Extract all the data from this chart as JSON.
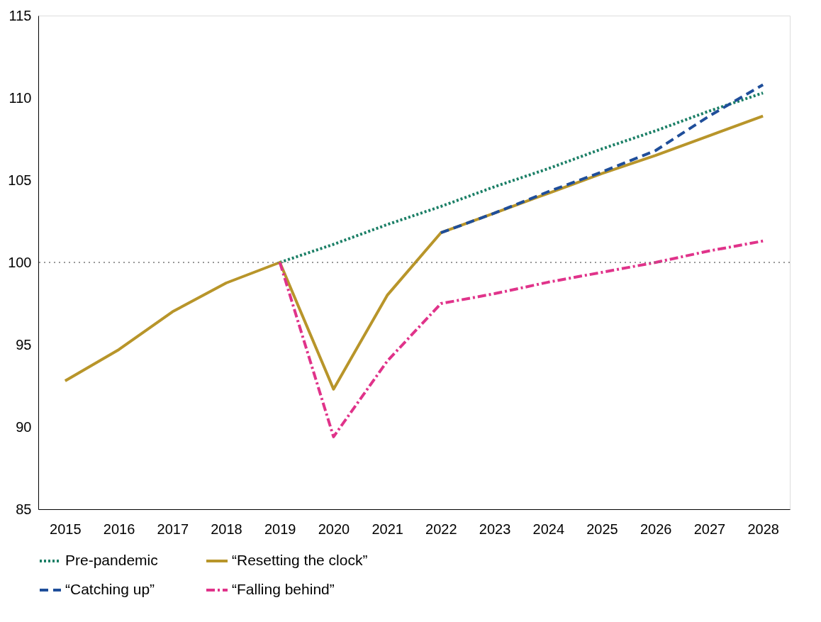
{
  "chart_data": {
    "type": "line",
    "categories": [
      "2015",
      "2016",
      "2017",
      "2018",
      "2019",
      "2020",
      "2021",
      "2022",
      "2023",
      "2024",
      "2025",
      "2026",
      "2027",
      "2028"
    ],
    "series": [
      {
        "name": "Pre-pandemic",
        "color": "#1b7f66",
        "line_style": "dotted",
        "values": [
          null,
          null,
          null,
          null,
          100,
          101.1,
          102.3,
          103.4,
          104.6,
          105.7,
          106.9,
          108.0,
          109.2,
          110.3
        ]
      },
      {
        "name": "“Resetting the clock”",
        "color": "#b8952a",
        "line_style": "solid",
        "values": [
          92.8,
          94.7,
          97.0,
          98.75,
          100,
          92.3,
          98.0,
          101.8,
          103.0,
          104.2,
          105.4,
          106.5,
          107.7,
          108.9
        ]
      },
      {
        "name": "“Catching up”",
        "color": "#1f4e9a",
        "line_style": "dashed",
        "values": [
          null,
          null,
          null,
          null,
          null,
          null,
          null,
          101.8,
          103.0,
          104.3,
          105.5,
          106.8,
          108.9,
          110.8
        ]
      },
      {
        "name": "“Falling behind”",
        "color": "#e0338a",
        "line_style": "dashdot",
        "values": [
          null,
          null,
          null,
          null,
          100,
          89.4,
          94.0,
          97.5,
          98.1,
          98.8,
          99.4,
          100.0,
          100.7,
          101.3
        ]
      }
    ],
    "ylim": [
      85,
      115
    ],
    "yticks": [
      85,
      90,
      95,
      100,
      105,
      110,
      115
    ],
    "ref_lines": [
      {
        "axis": "y",
        "value": 100,
        "color": "#777777",
        "line_style": "dotted"
      }
    ],
    "grid": false,
    "legend": "bottom",
    "marker": "none"
  }
}
